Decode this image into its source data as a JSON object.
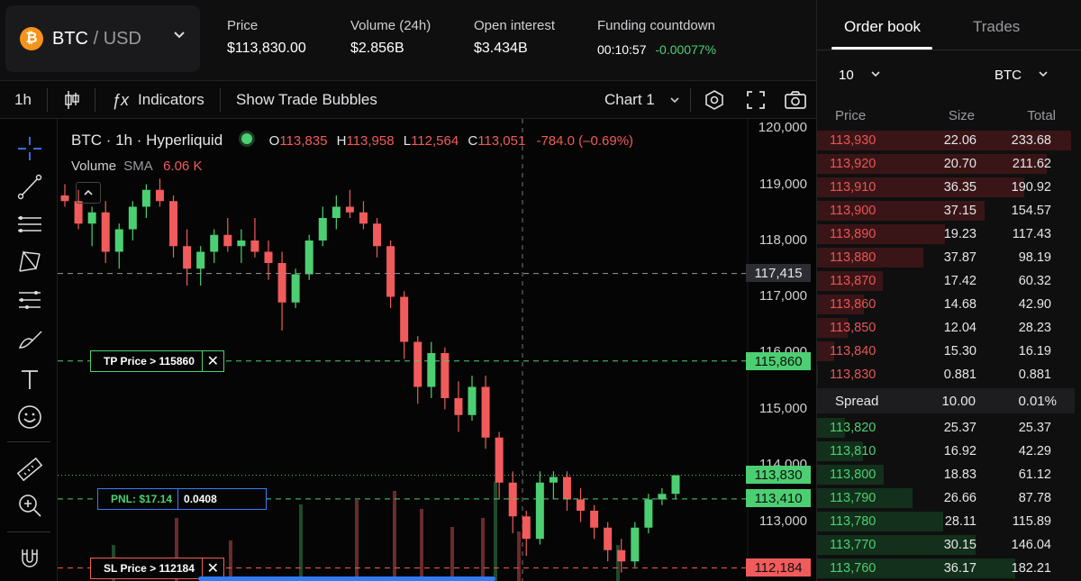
{
  "header": {
    "pair": {
      "base": "BTC",
      "quote": "USD",
      "coin_icon": "bitcoin-icon",
      "coin_glyph": "₿"
    },
    "stats": [
      {
        "label": "Price",
        "value": "$113,830.00"
      },
      {
        "label": "Volume (24h)",
        "value": "$2.856B"
      },
      {
        "label": "Open interest",
        "value": "$3.434B"
      }
    ],
    "funding": {
      "label": "Funding countdown",
      "time": "00:10:57",
      "rate": "-0.00077%"
    }
  },
  "toolbar": {
    "interval": "1h",
    "indicators_label": "Indicators",
    "bubbles_label": "Show Trade Bubbles",
    "chart_label": "Chart 1"
  },
  "chart": {
    "legend": {
      "title": "BTC · 1h · Hyperliquid",
      "o_label": "O",
      "o": "113,835",
      "h_label": "H",
      "h": "113,958",
      "l_label": "L",
      "l": "112,564",
      "c_label": "C",
      "c": "113,051",
      "change": "-784.0 (–0.69%)"
    },
    "volume": {
      "label": "Volume",
      "sma": "SMA",
      "value": "6.06 K"
    },
    "y_axis": [
      "120,000",
      "119,000",
      "118,000",
      "117,000",
      "116,000",
      "115,000",
      "114,000",
      "113,000"
    ],
    "price_lines": [
      {
        "value": "117,415",
        "kind": "crosshair"
      },
      {
        "value": "115,860",
        "kind": "tp"
      },
      {
        "value": "113,830",
        "kind": "last"
      },
      {
        "value": "113,410",
        "kind": "entry"
      },
      {
        "value": "112,184",
        "kind": "sl"
      }
    ],
    "orders": {
      "tp": "TP Price > 115860",
      "pnl": "PNL: $17.14",
      "pnl_size": "0.0408",
      "sl": "SL Price > 112184"
    },
    "colors": {
      "up": "#4ccf72",
      "down": "#f15b5b"
    }
  },
  "chart_data": {
    "type": "candlestick",
    "interval": "1h",
    "ylim": [
      112000,
      120000
    ],
    "candles_ohlc_approx": [
      [
        118800,
        119000,
        118600,
        118700
      ],
      [
        118700,
        118900,
        118200,
        118300
      ],
      [
        118300,
        118600,
        117900,
        118500
      ],
      [
        118500,
        118700,
        117600,
        117800
      ],
      [
        117800,
        118300,
        117500,
        118200
      ],
      [
        118200,
        118700,
        118000,
        118600
      ],
      [
        118600,
        119000,
        118400,
        118900
      ],
      [
        118900,
        119100,
        118600,
        118700
      ],
      [
        118700,
        118800,
        117700,
        117900
      ],
      [
        117900,
        118200,
        117200,
        117500
      ],
      [
        117500,
        117900,
        117200,
        117800
      ],
      [
        117800,
        118200,
        117600,
        118100
      ],
      [
        118100,
        118400,
        117800,
        117900
      ],
      [
        117900,
        118200,
        117600,
        118000
      ],
      [
        118000,
        118400,
        117700,
        117800
      ],
      [
        117800,
        118000,
        117300,
        117600
      ],
      [
        117600,
        117800,
        116400,
        116900
      ],
      [
        116900,
        117500,
        116800,
        117400
      ],
      [
        117400,
        118100,
        117300,
        118000
      ],
      [
        118000,
        118600,
        117900,
        118400
      ],
      [
        118400,
        118800,
        118200,
        118600
      ],
      [
        118600,
        118900,
        118400,
        118500
      ],
      [
        118500,
        118700,
        118200,
        118300
      ],
      [
        118300,
        118400,
        117700,
        117900
      ],
      [
        117900,
        118000,
        116800,
        117000
      ],
      [
        117000,
        117100,
        115900,
        116200
      ],
      [
        116200,
        116300,
        115100,
        115400
      ],
      [
        115400,
        116200,
        115200,
        116000
      ],
      [
        116000,
        116100,
        115000,
        115200
      ],
      [
        115200,
        115500,
        114600,
        114900
      ],
      [
        114900,
        115600,
        114800,
        115400
      ],
      [
        115400,
        115600,
        114300,
        114500
      ],
      [
        114500,
        114600,
        113400,
        113700
      ],
      [
        113700,
        113900,
        112800,
        113100
      ],
      [
        113100,
        113200,
        112400,
        112700
      ],
      [
        112700,
        113900,
        112600,
        113700
      ],
      [
        113700,
        113900,
        113400,
        113800
      ],
      [
        113800,
        113900,
        113200,
        113400
      ],
      [
        113400,
        113600,
        113000,
        113200
      ],
      [
        113200,
        113300,
        112700,
        112900
      ],
      [
        112900,
        113000,
        112300,
        112500
      ],
      [
        112500,
        112700,
        112100,
        112300
      ],
      [
        112300,
        113000,
        112200,
        112900
      ],
      [
        112900,
        113500,
        112800,
        113400
      ],
      [
        113400,
        113600,
        113300,
        113500
      ],
      [
        113500,
        113830,
        113400,
        113830
      ]
    ]
  },
  "orderbook": {
    "tabs": [
      "Order book",
      "Trades"
    ],
    "depth": "10",
    "unit": "BTC",
    "headers": [
      "Price",
      "Size",
      "Total"
    ],
    "asks": [
      {
        "price": "113,930",
        "size": "22.06",
        "total": "233.68",
        "depth": 1.0
      },
      {
        "price": "113,920",
        "size": "20.70",
        "total": "211.62",
        "depth": 0.906
      },
      {
        "price": "113,910",
        "size": "36.35",
        "total": "190.92",
        "depth": 0.817
      },
      {
        "price": "113,900",
        "size": "37.15",
        "total": "154.57",
        "depth": 0.661
      },
      {
        "price": "113,890",
        "size": "19.23",
        "total": "117.43",
        "depth": 0.503
      },
      {
        "price": "113,880",
        "size": "37.87",
        "total": "98.19",
        "depth": 0.42
      },
      {
        "price": "113,870",
        "size": "17.42",
        "total": "60.32",
        "depth": 0.258
      },
      {
        "price": "113,860",
        "size": "14.68",
        "total": "42.90",
        "depth": 0.184
      },
      {
        "price": "113,850",
        "size": "12.04",
        "total": "28.23",
        "depth": 0.121
      },
      {
        "price": "113,840",
        "size": "15.30",
        "total": "16.19",
        "depth": 0.069
      },
      {
        "price": "113,830",
        "size": "0.881",
        "total": "0.881",
        "depth": 0.004
      }
    ],
    "spread": {
      "label": "Spread",
      "value": "10.00",
      "pct": "0.01%"
    },
    "bids": [
      {
        "price": "113,820",
        "size": "25.37",
        "total": "25.37",
        "depth": 0.109
      },
      {
        "price": "113,810",
        "size": "16.92",
        "total": "42.29",
        "depth": 0.181
      },
      {
        "price": "113,800",
        "size": "18.83",
        "total": "61.12",
        "depth": 0.262
      },
      {
        "price": "113,790",
        "size": "26.66",
        "total": "87.78",
        "depth": 0.376
      },
      {
        "price": "113,780",
        "size": "28.11",
        "total": "115.89",
        "depth": 0.496
      },
      {
        "price": "113,770",
        "size": "30.15",
        "total": "146.04",
        "depth": 0.625
      },
      {
        "price": "113,760",
        "size": "36.17",
        "total": "182.21",
        "depth": 0.78
      }
    ]
  }
}
